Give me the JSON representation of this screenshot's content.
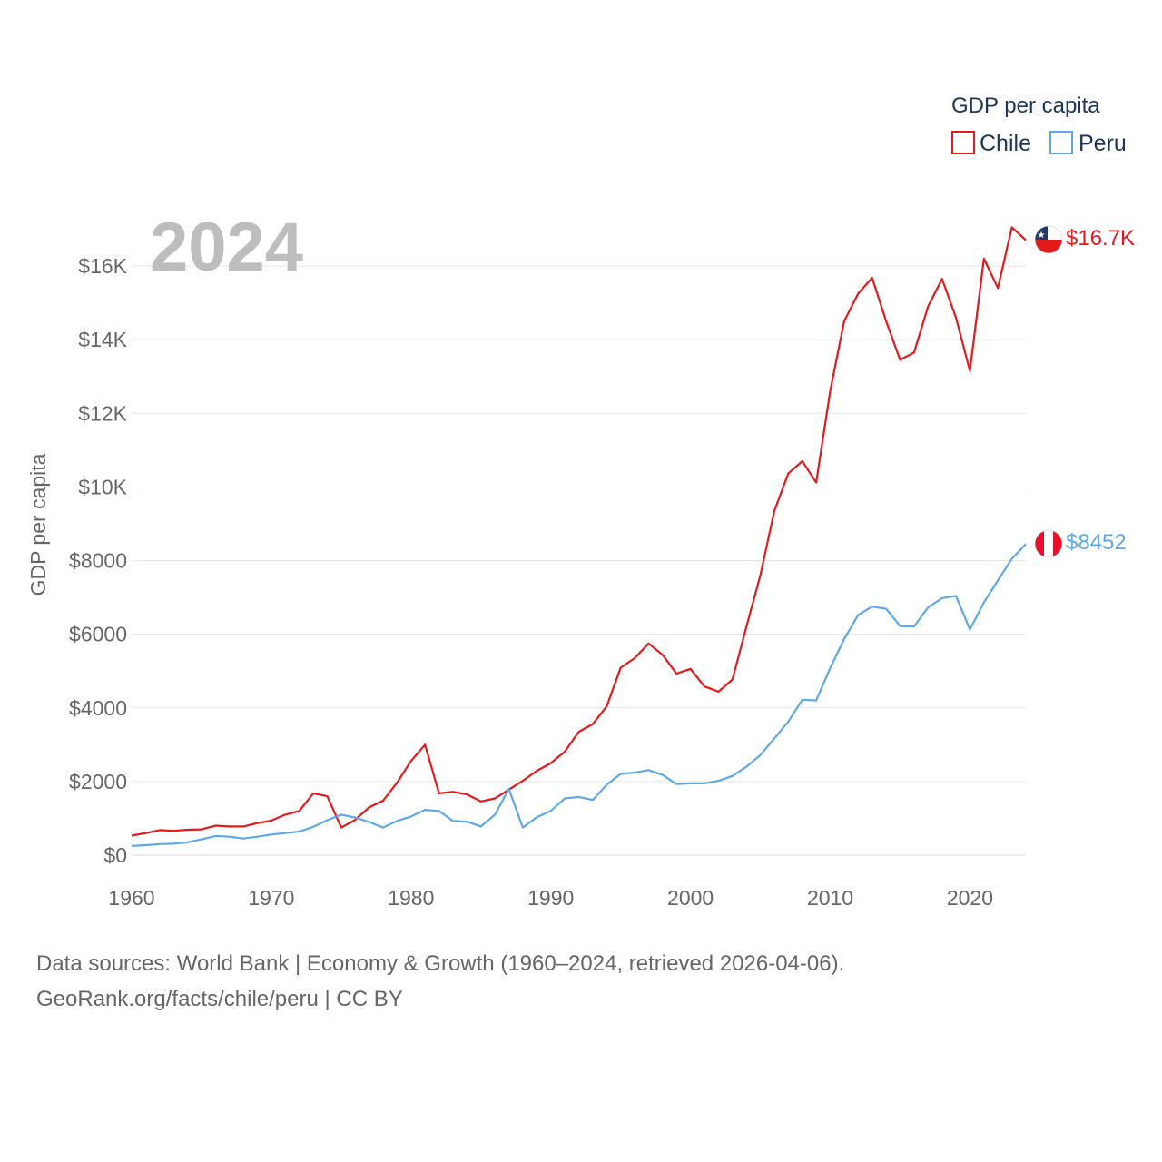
{
  "chart_data": {
    "type": "line",
    "title": "GDP per capita",
    "year_label": "2024",
    "ylabel": "GDP per capita",
    "xlabel": "",
    "xlim": [
      1960,
      2024
    ],
    "ylim": [
      0,
      16000
    ],
    "x_ticks": [
      1960,
      1970,
      1980,
      1990,
      2000,
      2010,
      2020
    ],
    "x_tick_labels": [
      "1960",
      "1970",
      "1980",
      "1990",
      "2000",
      "2010",
      "2020"
    ],
    "y_ticks": [
      0,
      2000,
      4000,
      6000,
      8000,
      10000,
      12000,
      14000,
      16000
    ],
    "y_tick_labels": [
      "$0",
      "$2000",
      "$4000",
      "$6000",
      "$8000",
      "$10K",
      "$12K",
      "$14K",
      "$16K"
    ],
    "grid": true,
    "legend": "top-right",
    "x": [
      1960,
      1961,
      1962,
      1963,
      1964,
      1965,
      1966,
      1967,
      1968,
      1969,
      1970,
      1971,
      1972,
      1973,
      1974,
      1975,
      1976,
      1977,
      1978,
      1979,
      1980,
      1981,
      1982,
      1983,
      1984,
      1985,
      1986,
      1987,
      1988,
      1989,
      1990,
      1991,
      1992,
      1993,
      1994,
      1995,
      1996,
      1997,
      1998,
      1999,
      2000,
      2001,
      2002,
      2003,
      2004,
      2005,
      2006,
      2007,
      2008,
      2009,
      2010,
      2011,
      2012,
      2013,
      2014,
      2015,
      2016,
      2017,
      2018,
      2019,
      2020,
      2021,
      2022,
      2023,
      2024
    ],
    "series": [
      {
        "name": "Chile",
        "color": "#e31a1c",
        "end_label": "$16.7K",
        "values": [
          530,
          600,
          680,
          660,
          690,
          700,
          800,
          780,
          780,
          870,
          940,
          1100,
          1200,
          1680,
          1600,
          750,
          960,
          1300,
          1480,
          1970,
          2560,
          3000,
          1680,
          1720,
          1650,
          1460,
          1540,
          1780,
          2020,
          2290,
          2500,
          2810,
          3350,
          3560,
          4040,
          5090,
          5350,
          5750,
          5440,
          4930,
          5060,
          4580,
          4440,
          4770,
          6200,
          7600,
          9350,
          10370,
          10700,
          10120,
          12600,
          14500,
          15250,
          15680,
          14500,
          13450,
          13650,
          14900,
          15650,
          14600,
          13150,
          16200,
          15400,
          17050,
          16700
        ]
      },
      {
        "name": "Peru",
        "color": "#5fa8e6",
        "end_label": "$8452",
        "values": [
          250,
          270,
          300,
          310,
          350,
          430,
          520,
          500,
          450,
          500,
          560,
          600,
          640,
          770,
          950,
          1100,
          1020,
          900,
          750,
          930,
          1050,
          1230,
          1200,
          930,
          910,
          780,
          1100,
          1800,
          750,
          1030,
          1200,
          1540,
          1580,
          1500,
          1910,
          2210,
          2240,
          2310,
          2180,
          1930,
          1950,
          1950,
          2020,
          2150,
          2400,
          2720,
          3170,
          3630,
          4220,
          4200,
          5080,
          5870,
          6520,
          6750,
          6690,
          6220,
          6210,
          6730,
          6980,
          7040,
          6130,
          6860,
          7460,
          8050,
          8452
        ]
      }
    ],
    "source_line1": "Data sources: World Bank | Economy & Growth (1960–2024, retrieved 2026-04-06).",
    "source_line2": "GeoRank.org/facts/chile/peru | CC BY"
  },
  "colors": {
    "chile": "#e31a1c",
    "peru": "#5fa8e6",
    "grid": "#e6e6e6",
    "axis_text": "#666666",
    "legend_text": "#1d3557",
    "year_text": "#bdbdbd"
  },
  "icons": {
    "chile": "chile-flag-icon",
    "peru": "peru-flag-icon"
  }
}
